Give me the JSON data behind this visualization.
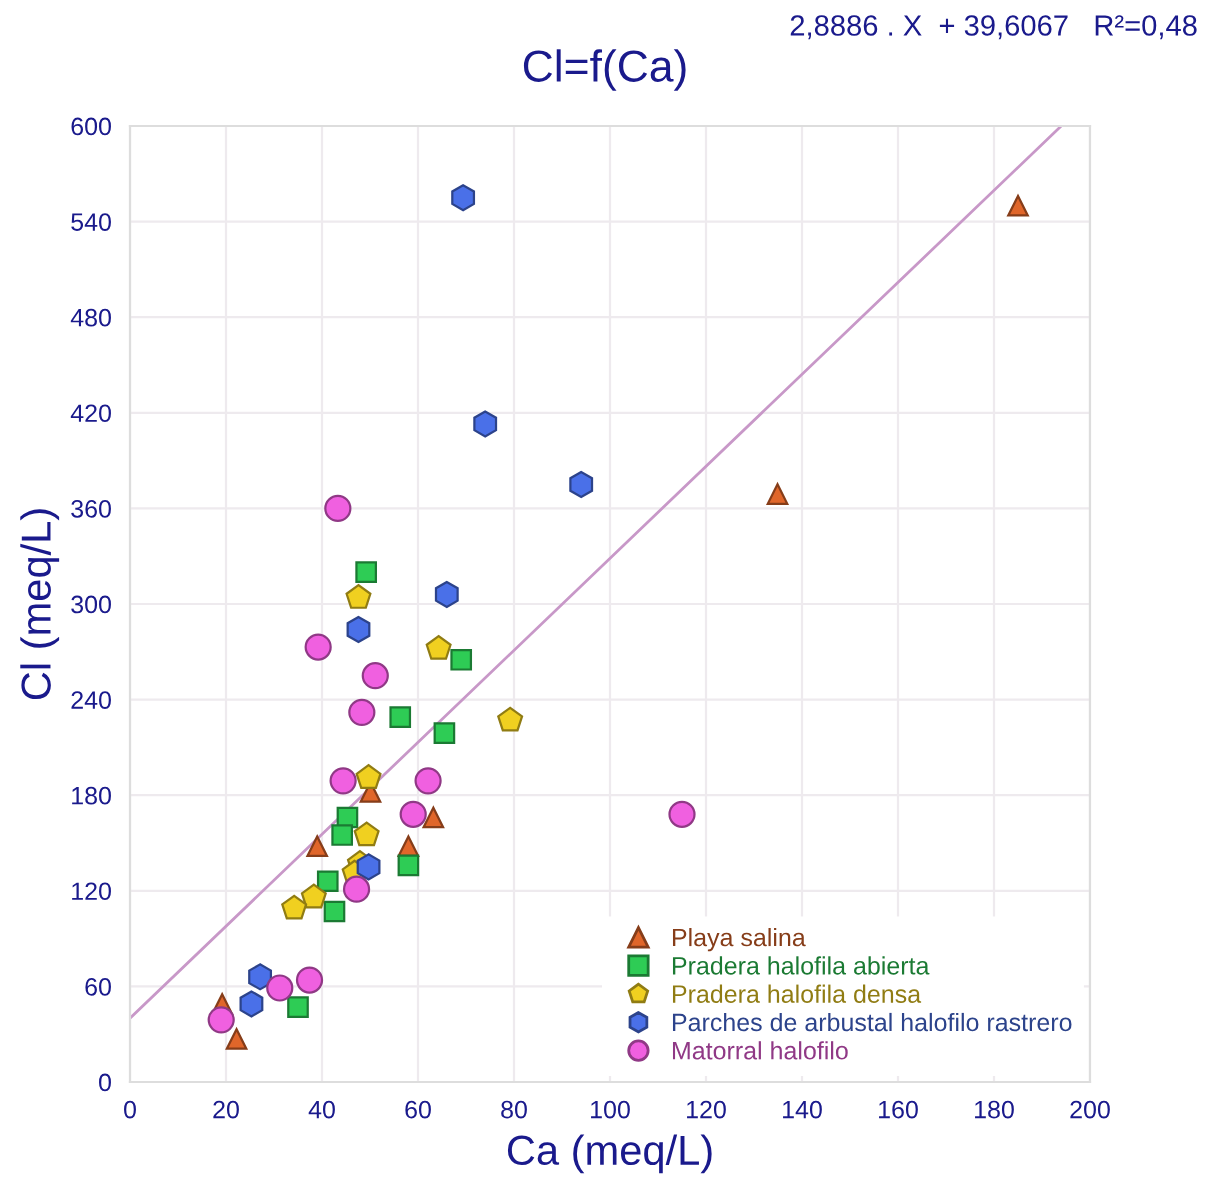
{
  "chart_data": {
    "type": "scatter",
    "title": "Cl=f(Ca)",
    "xlabel": "Ca (meq/L)",
    "ylabel": "Cl (meq/L)",
    "annotations": [
      "2,8886 . X  + 39,6067   R²=0,48"
    ],
    "xlim": [
      0,
      200
    ],
    "ylim": [
      0,
      600
    ],
    "xticks": [
      0,
      20,
      40,
      60,
      80,
      100,
      120,
      140,
      160,
      180,
      200
    ],
    "yticks": [
      0,
      60,
      120,
      180,
      240,
      300,
      360,
      420,
      480,
      540,
      600
    ],
    "grid": true,
    "legend": "bottom right",
    "series": [
      {
        "name": "Playa salina",
        "color": "#e0662a",
        "marker": "triangle",
        "x": [
          19.2,
          22.2,
          39,
          50.1,
          58,
          63.2,
          134.9,
          185
        ],
        "values": [
          49,
          27,
          148,
          182,
          148,
          166,
          369,
          550
        ]
      },
      {
        "name": "Pradera halofila abierta",
        "color": "#2ecc55",
        "marker": "square",
        "x": [
          49.2,
          69,
          56.3,
          65.5,
          45.3,
          44.2,
          41.2,
          58,
          42.6,
          35
        ],
        "values": [
          320,
          265,
          229,
          219,
          166,
          155,
          126,
          136,
          107,
          47
        ]
      },
      {
        "name": "Pradera halofila densa",
        "color": "#f0d020",
        "x": [
          47.6,
          64.3,
          79.2,
          49.7,
          49.3,
          47.9,
          46.8,
          38.3,
          34.2
        ],
        "values": [
          304,
          272,
          227,
          191,
          155,
          137,
          131,
          116,
          109
        ]
      },
      {
        "name": "Parches de arbustal halofilo rastrero",
        "color": "#4a70e8",
        "x": [
          69.4,
          74,
          94,
          66,
          47.6,
          49.7,
          27.1,
          25.3
        ],
        "values": [
          555,
          413,
          375,
          306,
          284,
          135,
          66,
          49
        ]
      },
      {
        "name": "Matorral halofilo",
        "color": "#f060e0",
        "marker": "circle",
        "x": [
          43.3,
          39.2,
          51.1,
          48.3,
          44.4,
          62.1,
          59,
          47.2,
          37.4,
          31.2,
          19,
          115
        ],
        "values": [
          360,
          273,
          255,
          232,
          189,
          189,
          168,
          121,
          64,
          59,
          39,
          168
        ]
      },
      {
        "type": "line",
        "color": "#c898c8",
        "x": [
          0,
          194
        ],
        "values": [
          40,
          600
        ]
      }
    ]
  }
}
